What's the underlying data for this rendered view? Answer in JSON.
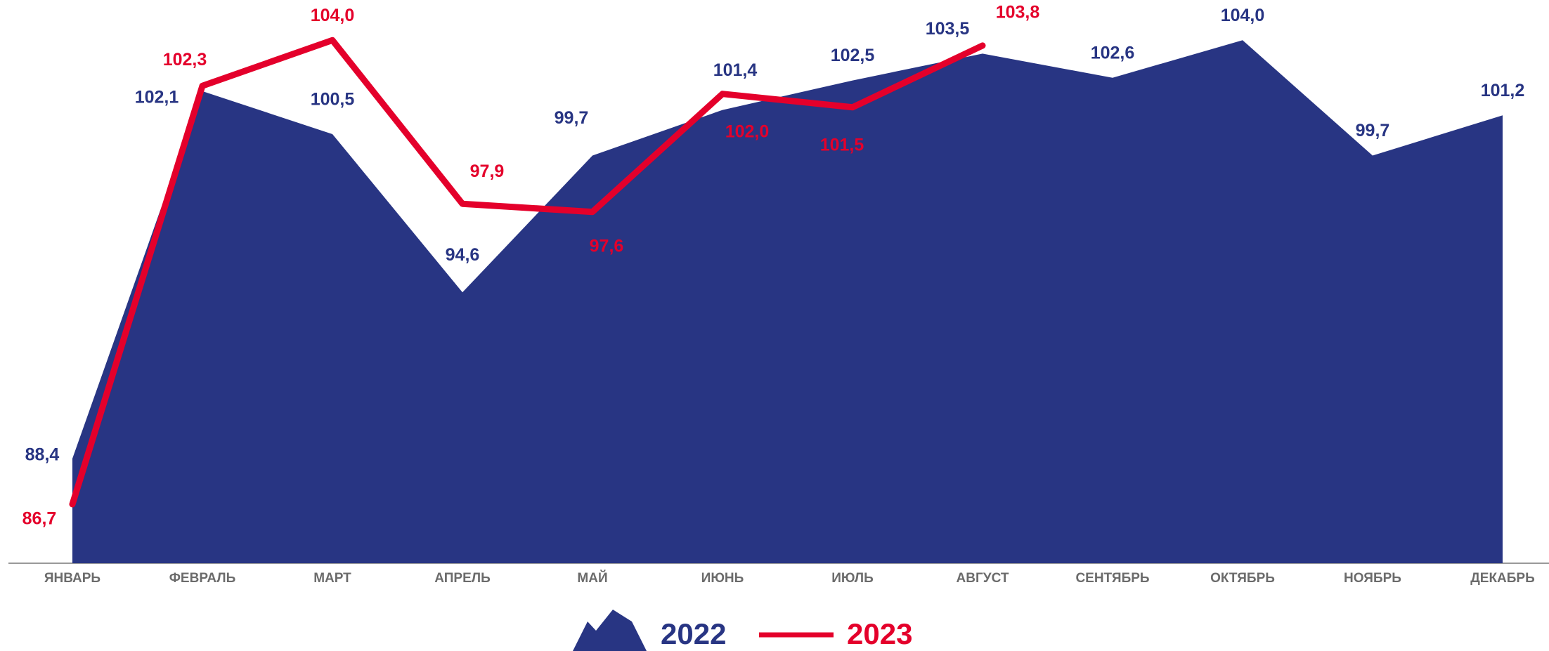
{
  "chart_data": {
    "type": "area-line",
    "categories": [
      "ЯНВАРЬ",
      "ФЕВРАЛЬ",
      "МАРТ",
      "АПРЕЛЬ",
      "МАЙ",
      "ИЮНЬ",
      "ИЮЛЬ",
      "АВГУСТ",
      "СЕНТЯБРЬ",
      "ОКТЯБРЬ",
      "НОЯБРЬ",
      "ДЕКАБРЬ"
    ],
    "series": [
      {
        "name": "2022",
        "color": "#283583",
        "style": "area",
        "values": [
          88.4,
          102.1,
          100.5,
          94.6,
          99.7,
          101.4,
          102.5,
          103.5,
          102.6,
          104.0,
          99.7,
          101.2
        ],
        "value_labels": [
          "88,4",
          "102,1",
          "100,5",
          "94,6",
          "99,7",
          "101,4",
          "102,5",
          "103,5",
          "102,6",
          "104,0",
          "99,7",
          "101,2"
        ]
      },
      {
        "name": "2023",
        "color": "#e4002b",
        "style": "line",
        "values": [
          86.7,
          102.3,
          104.0,
          97.9,
          97.6,
          102.0,
          101.5,
          103.8,
          null,
          null,
          null,
          null
        ],
        "value_labels": [
          "86,7",
          "102,3",
          "104,0",
          "97,9",
          "97,6",
          "102,0",
          "101,5",
          "103,8",
          null,
          null,
          null,
          null
        ]
      }
    ],
    "ylim": [
      84.5,
      105.5
    ]
  }
}
